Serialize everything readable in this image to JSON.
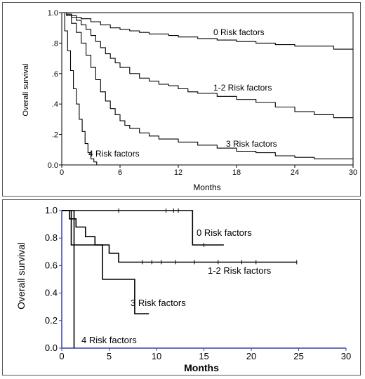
{
  "chart_data": [
    {
      "type": "line",
      "step": true,
      "xlabel": "Months",
      "ylabel": "Overall survival",
      "xlim": [
        0,
        30
      ],
      "ylim": [
        0,
        1
      ],
      "xticks": [
        0,
        6,
        12,
        18,
        24,
        30
      ],
      "xtick_labels": [
        "0",
        "6",
        "12",
        "18",
        "24",
        "30"
      ],
      "yticks": [
        0,
        0.2,
        0.4,
        0.6,
        0.8,
        1.0
      ],
      "ytick_labels": [
        "0.0",
        ".2",
        ".4",
        ".6",
        ".8",
        "1.0"
      ],
      "grid": false,
      "series": [
        {
          "name": "0 Risk factors",
          "x": [
            0,
            0.5,
            1,
            1.5,
            2,
            3,
            4,
            5,
            6,
            7,
            8,
            9,
            10,
            11,
            12,
            14,
            16,
            18,
            20,
            22,
            24,
            26,
            28,
            30
          ],
          "y": [
            1,
            0.99,
            0.98,
            0.97,
            0.96,
            0.94,
            0.92,
            0.9,
            0.89,
            0.88,
            0.87,
            0.86,
            0.86,
            0.85,
            0.84,
            0.83,
            0.82,
            0.81,
            0.8,
            0.79,
            0.78,
            0.78,
            0.76,
            0.76
          ]
        },
        {
          "name": "1-2 Risk factors",
          "x": [
            0,
            0.5,
            1,
            1.5,
            2,
            2.5,
            3,
            3.5,
            4,
            4.5,
            5,
            5.5,
            6,
            7,
            8,
            9,
            10,
            11,
            12,
            13,
            14,
            16,
            18,
            20,
            22,
            24,
            26,
            28,
            30
          ],
          "y": [
            1,
            0.99,
            0.97,
            0.95,
            0.92,
            0.89,
            0.85,
            0.81,
            0.77,
            0.73,
            0.7,
            0.67,
            0.64,
            0.6,
            0.57,
            0.55,
            0.53,
            0.52,
            0.5,
            0.48,
            0.47,
            0.45,
            0.43,
            0.41,
            0.38,
            0.35,
            0.33,
            0.31,
            0.31
          ]
        },
        {
          "name": "3 Risk factors",
          "x": [
            0,
            0.5,
            1,
            1.5,
            2,
            2.5,
            3,
            3.5,
            4,
            4.5,
            5,
            5.5,
            6,
            6.5,
            7,
            8,
            9,
            10,
            12,
            14,
            16,
            18,
            20,
            22,
            24,
            26,
            28,
            30
          ],
          "y": [
            1,
            0.98,
            0.93,
            0.87,
            0.8,
            0.72,
            0.64,
            0.56,
            0.48,
            0.42,
            0.37,
            0.33,
            0.29,
            0.26,
            0.24,
            0.21,
            0.19,
            0.17,
            0.15,
            0.13,
            0.11,
            0.09,
            0.08,
            0.06,
            0.05,
            0.04,
            0.04,
            0.04
          ]
        },
        {
          "name": "4 Risk factors",
          "x": [
            0,
            0.3,
            0.6,
            0.9,
            1.2,
            1.5,
            1.8,
            2.1,
            2.4,
            2.7,
            3,
            3.3,
            3.6,
            4
          ],
          "y": [
            1,
            0.88,
            0.75,
            0.62,
            0.5,
            0.4,
            0.3,
            0.22,
            0.14,
            0.08,
            0.04,
            0.02,
            0.0,
            0.0
          ]
        }
      ],
      "annotations": [
        "0 Risk factors",
        "1-2 Risk factors",
        "3 Risk factors",
        "4 Risk factors"
      ]
    },
    {
      "type": "line",
      "step": true,
      "xlabel": "Months",
      "ylabel": "Overall survival",
      "xlim": [
        0,
        30
      ],
      "ylim": [
        0,
        1
      ],
      "xticks": [
        0,
        5,
        10,
        15,
        20,
        25,
        30
      ],
      "xtick_labels": [
        "0",
        "5",
        "10",
        "15",
        "20",
        "25",
        "30"
      ],
      "yticks": [
        0,
        0.2,
        0.4,
        0.6,
        0.8,
        1.0
      ],
      "ytick_labels": [
        "0.0",
        "0.2",
        "0.4",
        "0.6",
        "0.8",
        "1.0"
      ],
      "grid": false,
      "series": [
        {
          "name": "0 Risk factors",
          "x": [
            0,
            13.8,
            17.1
          ],
          "y": [
            1,
            0.75,
            0.75
          ],
          "censored": [
            [
              6.0,
              1.0
            ],
            [
              11.0,
              1.0
            ],
            [
              11.8,
              1.0
            ],
            [
              12.3,
              1.0
            ],
            [
              15.0,
              0.75
            ]
          ]
        },
        {
          "name": "1-2 Risk factors",
          "x": [
            0,
            0.8,
            1.5,
            2.5,
            3.5,
            5.0,
            6.0,
            24.8
          ],
          "y": [
            1,
            0.94,
            0.88,
            0.81,
            0.75,
            0.69,
            0.625,
            0.625
          ],
          "censored": [
            [
              8.5,
              0.625
            ],
            [
              9.5,
              0.625
            ],
            [
              10.5,
              0.625
            ],
            [
              12.0,
              0.625
            ],
            [
              14.0,
              0.625
            ],
            [
              16.5,
              0.625
            ],
            [
              19.0,
              0.625
            ],
            [
              20.5,
              0.625
            ],
            [
              24.8,
              0.625
            ]
          ]
        },
        {
          "name": "3 Risk factors",
          "x": [
            0,
            1.0,
            4.3,
            7.7,
            9.2
          ],
          "y": [
            1,
            0.75,
            0.5,
            0.25,
            0.25
          ]
        },
        {
          "name": "4 Risk factors",
          "x": [
            0,
            1.3,
            1.3
          ],
          "y": [
            1,
            1,
            0
          ]
        }
      ],
      "annotations": [
        "0 Risk factors",
        "1-2 Risk factors",
        "3 Risk factors",
        "4 Risk factors"
      ]
    }
  ]
}
